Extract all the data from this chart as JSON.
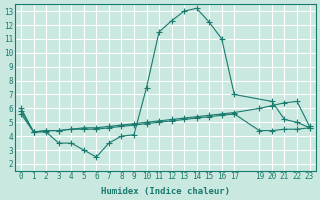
{
  "xlabel": "Humidex (Indice chaleur)",
  "ylabel": "",
  "bg_color": "#c8e8e0",
  "grid_color": "#ffffff",
  "line_color": "#1a7a6e",
  "xlim": [
    -0.5,
    23.5
  ],
  "ylim": [
    1.5,
    13.5
  ],
  "xticks": [
    0,
    1,
    2,
    3,
    4,
    5,
    6,
    7,
    8,
    9,
    10,
    11,
    12,
    13,
    14,
    15,
    16,
    17,
    19,
    20,
    21,
    22,
    23
  ],
  "yticks": [
    2,
    3,
    4,
    5,
    6,
    7,
    8,
    9,
    10,
    11,
    12,
    13
  ],
  "curve1_x": [
    0,
    1,
    2,
    3,
    4,
    5,
    6,
    7,
    8,
    9,
    10,
    11,
    12,
    13,
    14,
    15,
    16,
    17,
    20,
    21,
    22,
    23
  ],
  "curve1_y": [
    6.0,
    4.3,
    4.3,
    3.5,
    3.5,
    3.0,
    2.5,
    3.5,
    4.0,
    4.1,
    7.5,
    11.5,
    12.3,
    13.0,
    13.2,
    12.2,
    11.0,
    7.0,
    6.5,
    5.2,
    5.0,
    4.6
  ],
  "curve2_x": [
    0,
    1,
    2,
    3,
    4,
    5,
    6,
    7,
    8,
    9,
    10,
    11,
    12,
    13,
    14,
    15,
    16,
    17,
    19,
    20,
    21,
    22,
    23
  ],
  "curve2_y": [
    5.8,
    4.3,
    4.4,
    4.4,
    4.5,
    4.6,
    4.6,
    4.7,
    4.8,
    4.9,
    5.0,
    5.1,
    5.2,
    5.3,
    5.4,
    5.5,
    5.6,
    5.7,
    6.0,
    6.2,
    6.4,
    6.5,
    4.7
  ],
  "curve3_x": [
    0,
    1,
    2,
    3,
    4,
    5,
    6,
    7,
    8,
    9,
    10,
    11,
    12,
    13,
    14,
    15,
    16,
    17,
    19,
    20,
    21,
    22,
    23
  ],
  "curve3_y": [
    5.6,
    4.3,
    4.4,
    4.4,
    4.5,
    4.5,
    4.5,
    4.6,
    4.7,
    4.8,
    4.9,
    5.0,
    5.1,
    5.2,
    5.3,
    5.4,
    5.5,
    5.6,
    4.4,
    4.4,
    4.5,
    4.5,
    4.6
  ]
}
